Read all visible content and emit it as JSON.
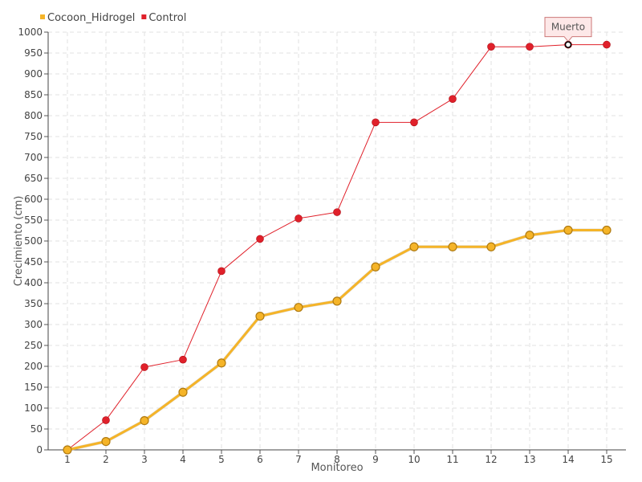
{
  "chart_data": {
    "type": "line",
    "title": "",
    "xlabel": "Monitoreo",
    "ylabel": "Crecimiento (cm)",
    "categories": [
      "1",
      "2",
      "3",
      "4",
      "5",
      "6",
      "7",
      "8",
      "9",
      "10",
      "11",
      "12",
      "13",
      "14",
      "15"
    ],
    "ylim": [
      0,
      1000
    ],
    "ytick_step": 50,
    "grid": true,
    "legend_position": "top-left",
    "series": [
      {
        "name": "Cocoon_Hidrogel",
        "color": "#f5b428",
        "values": [
          0,
          20,
          70,
          138,
          208,
          320,
          341,
          356,
          438,
          486,
          486,
          486,
          514,
          526,
          526
        ]
      },
      {
        "name": "Control",
        "color": "#e0202a",
        "values": [
          0,
          71,
          198,
          216,
          428,
          505,
          554,
          569,
          784,
          784,
          840,
          965,
          965,
          970,
          970
        ]
      }
    ],
    "annotations": [
      {
        "text": "Muerto",
        "series": "Control",
        "category": "14"
      }
    ]
  }
}
